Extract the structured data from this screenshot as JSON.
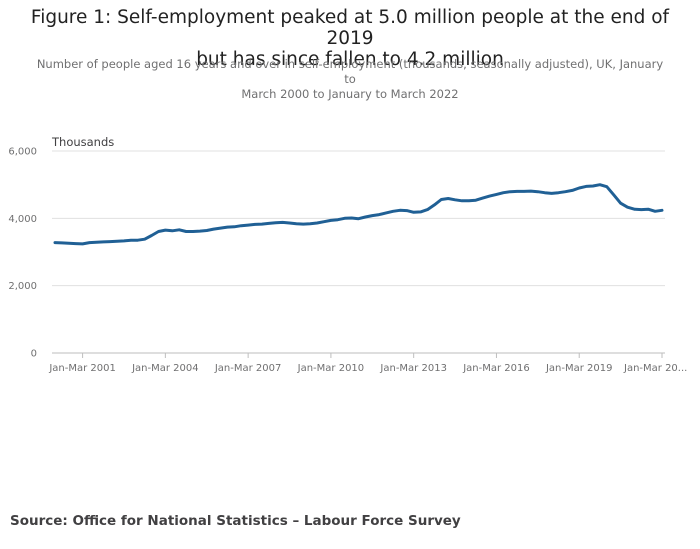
{
  "header": {
    "title_line1": "Figure 1: Self-employment peaked at 5.0 million people at the end of 2019",
    "title_line2": "but has since fallen to 4.2 million",
    "subtitle_line1": "Number of people aged 16 years and over in self-employment (thousands, seasonally adjusted), UK, January to",
    "subtitle_line2": "March 2000 to January to March 2022"
  },
  "source": "Source: Office for National Statistics – Labour Force Survey",
  "colors": {
    "line": "#206095",
    "grid": "#e0e0e0",
    "text": "#707071"
  },
  "chart_data": {
    "type": "line",
    "title": "Figure 1: Self-employment peaked at 5.0 million people at the end of 2019 but has since fallen to 4.2 million",
    "ylabel": "Thousands",
    "ylim": [
      0,
      6000
    ],
    "yticks": [
      0,
      2000,
      4000,
      6000
    ],
    "ytick_labels": [
      "0",
      "2,000",
      "4,000",
      "6,000"
    ],
    "xtick_labels": [
      "Jan-Mar 2001",
      "Jan-Mar 2004",
      "Jan-Mar 2007",
      "Jan-Mar 2010",
      "Jan-Mar 2013",
      "Jan-Mar 2016",
      "Jan-Mar 2019",
      "Jan-Mar 20..."
    ],
    "xtick_years": [
      2001,
      2004,
      2007,
      2010,
      2013,
      2016,
      2019,
      2022
    ],
    "grid": true,
    "series": [
      {
        "points": [
          [
            2000.0,
            3280
          ],
          [
            2000.25,
            3270
          ],
          [
            2000.5,
            3260
          ],
          [
            2000.75,
            3250
          ],
          [
            2001.0,
            3240
          ],
          [
            2001.25,
            3280
          ],
          [
            2001.5,
            3290
          ],
          [
            2001.75,
            3300
          ],
          [
            2002.0,
            3310
          ],
          [
            2002.25,
            3320
          ],
          [
            2002.5,
            3330
          ],
          [
            2002.75,
            3350
          ],
          [
            2003.0,
            3350
          ],
          [
            2003.25,
            3380
          ],
          [
            2003.5,
            3490
          ],
          [
            2003.75,
            3610
          ],
          [
            2004.0,
            3650
          ],
          [
            2004.25,
            3630
          ],
          [
            2004.5,
            3660
          ],
          [
            2004.75,
            3610
          ],
          [
            2005.0,
            3610
          ],
          [
            2005.25,
            3620
          ],
          [
            2005.5,
            3640
          ],
          [
            2005.75,
            3680
          ],
          [
            2006.0,
            3710
          ],
          [
            2006.25,
            3740
          ],
          [
            2006.5,
            3750
          ],
          [
            2006.75,
            3780
          ],
          [
            2007.0,
            3800
          ],
          [
            2007.25,
            3820
          ],
          [
            2007.5,
            3830
          ],
          [
            2007.75,
            3850
          ],
          [
            2008.0,
            3870
          ],
          [
            2008.25,
            3880
          ],
          [
            2008.5,
            3860
          ],
          [
            2008.75,
            3840
          ],
          [
            2009.0,
            3830
          ],
          [
            2009.25,
            3840
          ],
          [
            2009.5,
            3860
          ],
          [
            2009.75,
            3900
          ],
          [
            2010.0,
            3940
          ],
          [
            2010.25,
            3960
          ],
          [
            2010.5,
            4000
          ],
          [
            2010.75,
            4010
          ],
          [
            2011.0,
            3990
          ],
          [
            2011.25,
            4040
          ],
          [
            2011.5,
            4080
          ],
          [
            2011.75,
            4110
          ],
          [
            2012.0,
            4160
          ],
          [
            2012.25,
            4210
          ],
          [
            2012.5,
            4240
          ],
          [
            2012.75,
            4230
          ],
          [
            2013.0,
            4180
          ],
          [
            2013.25,
            4190
          ],
          [
            2013.5,
            4260
          ],
          [
            2013.75,
            4400
          ],
          [
            2014.0,
            4560
          ],
          [
            2014.25,
            4590
          ],
          [
            2014.5,
            4550
          ],
          [
            2014.75,
            4520
          ],
          [
            2015.0,
            4520
          ],
          [
            2015.25,
            4540
          ],
          [
            2015.5,
            4600
          ],
          [
            2015.75,
            4660
          ],
          [
            2016.0,
            4710
          ],
          [
            2016.25,
            4760
          ],
          [
            2016.5,
            4790
          ],
          [
            2016.75,
            4800
          ],
          [
            2017.0,
            4800
          ],
          [
            2017.25,
            4810
          ],
          [
            2017.5,
            4790
          ],
          [
            2017.75,
            4760
          ],
          [
            2018.0,
            4740
          ],
          [
            2018.25,
            4760
          ],
          [
            2018.5,
            4790
          ],
          [
            2018.75,
            4830
          ],
          [
            2019.0,
            4900
          ],
          [
            2019.25,
            4950
          ],
          [
            2019.5,
            4960
          ],
          [
            2019.75,
            5000
          ],
          [
            2020.0,
            4940
          ],
          [
            2020.25,
            4700
          ],
          [
            2020.5,
            4450
          ],
          [
            2020.75,
            4330
          ],
          [
            2021.0,
            4270
          ],
          [
            2021.25,
            4260
          ],
          [
            2021.5,
            4270
          ],
          [
            2021.75,
            4210
          ],
          [
            2022.0,
            4240
          ]
        ]
      }
    ]
  }
}
